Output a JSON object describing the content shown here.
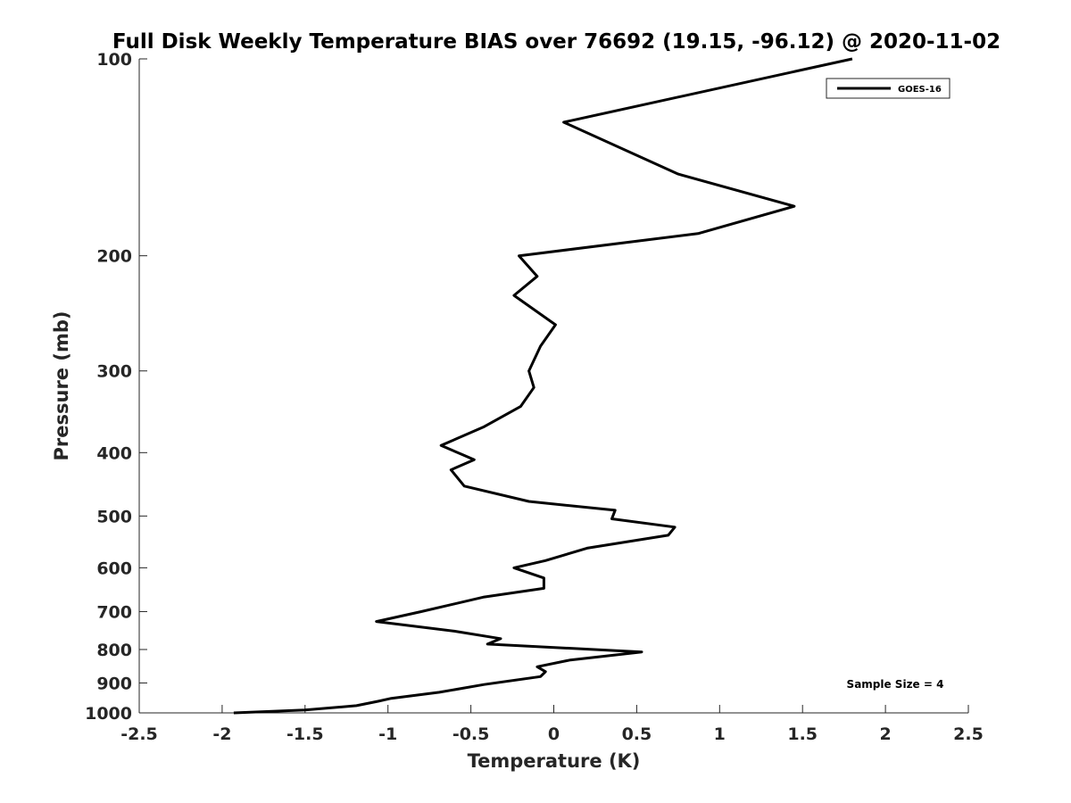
{
  "chart_data": {
    "type": "line",
    "title": "Full Disk Weekly Temperature BIAS over 76692 (19.15, -96.12) @ 2020-11-02",
    "xlabel": "Temperature (K)",
    "ylabel": "Pressure (mb)",
    "xlim": [
      -2.5,
      2.5
    ],
    "ylim": [
      100,
      1000
    ],
    "y_scale": "log",
    "y_reversed": true,
    "x_ticks": [
      -2.5,
      -2,
      -1.5,
      -1,
      -0.5,
      0,
      0.5,
      1,
      1.5,
      2,
      2.5
    ],
    "x_tick_labels": [
      "-2.5",
      "-2",
      "-1.5",
      "-1",
      "-0.5",
      "0",
      "0.5",
      "1",
      "1.5",
      "2",
      "2.5"
    ],
    "y_ticks": [
      100,
      200,
      300,
      400,
      500,
      600,
      700,
      800,
      900,
      1000
    ],
    "y_tick_labels": [
      "100",
      "200",
      "300",
      "400",
      "500",
      "600",
      "700",
      "800",
      "900",
      "1000"
    ],
    "grid": false,
    "legend_position": "top-right",
    "series": [
      {
        "name": "GOES-16",
        "color": "#000000",
        "points": [
          [
            1.8,
            100
          ],
          [
            0.06,
            125
          ],
          [
            0.75,
            150
          ],
          [
            1.45,
            168
          ],
          [
            0.87,
            185
          ],
          [
            -0.21,
            200
          ],
          [
            -0.1,
            215
          ],
          [
            -0.24,
            230
          ],
          [
            0.01,
            255
          ],
          [
            -0.08,
            275
          ],
          [
            -0.15,
            300
          ],
          [
            -0.12,
            318
          ],
          [
            -0.2,
            340
          ],
          [
            -0.42,
            365
          ],
          [
            -0.68,
            390
          ],
          [
            -0.48,
            410
          ],
          [
            -0.62,
            425
          ],
          [
            -0.54,
            450
          ],
          [
            -0.15,
            475
          ],
          [
            0.37,
            490
          ],
          [
            0.35,
            505
          ],
          [
            0.73,
            520
          ],
          [
            0.69,
            535
          ],
          [
            0.2,
            560
          ],
          [
            -0.05,
            585
          ],
          [
            -0.24,
            600
          ],
          [
            -0.06,
            622
          ],
          [
            -0.06,
            645
          ],
          [
            -0.42,
            665
          ],
          [
            -0.8,
            700
          ],
          [
            -1.07,
            725
          ],
          [
            -0.6,
            750
          ],
          [
            -0.32,
            770
          ],
          [
            -0.4,
            785
          ],
          [
            0.53,
            807
          ],
          [
            0.1,
            830
          ],
          [
            -0.1,
            850
          ],
          [
            -0.05,
            865
          ],
          [
            -0.08,
            880
          ],
          [
            -0.42,
            905
          ],
          [
            -0.69,
            930
          ],
          [
            -0.98,
            950
          ],
          [
            -1.06,
            960
          ],
          [
            -1.19,
            975
          ],
          [
            -1.5,
            990
          ],
          [
            -1.93,
            1000
          ]
        ]
      }
    ],
    "annotations": [
      {
        "text": "Sample Size = 4",
        "position": "bottom-right"
      }
    ]
  }
}
